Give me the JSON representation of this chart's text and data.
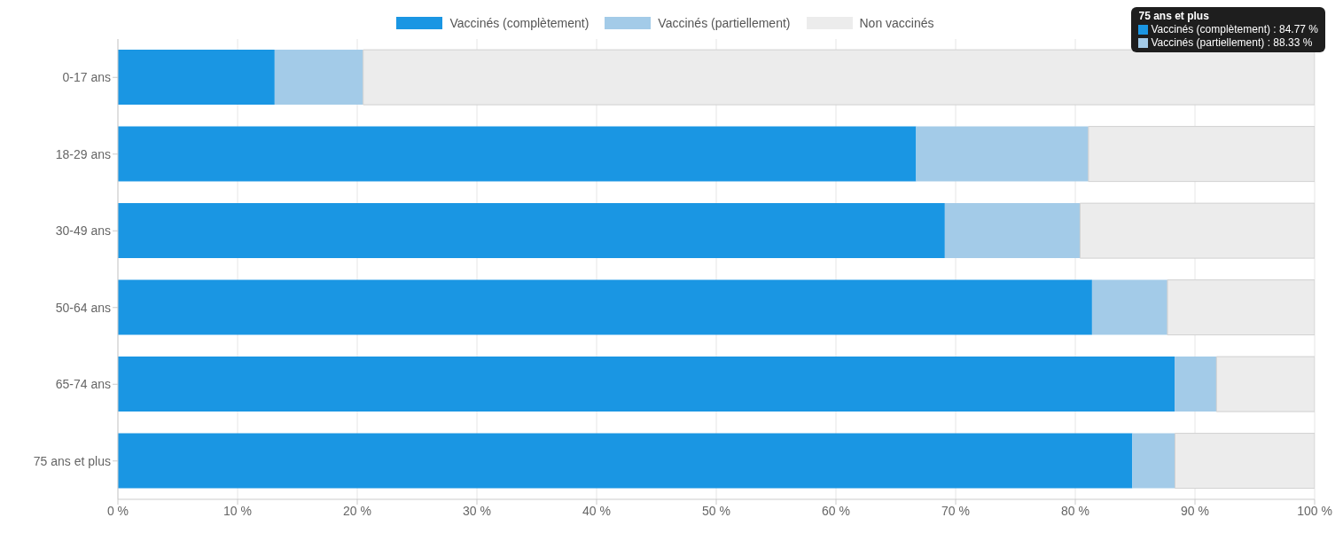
{
  "chart_data": {
    "type": "bar",
    "orientation": "horizontal",
    "stacked": true,
    "categories": [
      "0-17 ans",
      "18-29 ans",
      "30-49 ans",
      "50-64 ans",
      "65-74 ans",
      "75 ans et plus"
    ],
    "series": [
      {
        "name": "Vaccinés (complètement)",
        "color": "#1a96e3",
        "values": [
          13.1,
          66.7,
          69.1,
          81.4,
          88.3,
          84.77
        ]
      },
      {
        "name": "Vaccinés (partiellement)",
        "color": "#a3cbe8",
        "values": [
          7.4,
          14.4,
          11.3,
          6.3,
          3.5,
          3.56
        ]
      },
      {
        "name": "Non vaccinés",
        "color": "#ececec",
        "values": [
          79.5,
          18.9,
          19.6,
          12.3,
          8.2,
          11.67
        ]
      }
    ],
    "xlim": [
      0,
      100
    ],
    "xticks": [
      {
        "value": 0,
        "label": "0 %"
      },
      {
        "value": 10,
        "label": "10 %"
      },
      {
        "value": 20,
        "label": "20 %"
      },
      {
        "value": 30,
        "label": "30 %"
      },
      {
        "value": 40,
        "label": "40 %"
      },
      {
        "value": 50,
        "label": "50 %"
      },
      {
        "value": 60,
        "label": "60 %"
      },
      {
        "value": 70,
        "label": "70 %"
      },
      {
        "value": 80,
        "label": "80 %"
      },
      {
        "value": 90,
        "label": "90 %"
      },
      {
        "value": 100,
        "label": "100 %"
      }
    ],
    "grid": "x",
    "legend": "top",
    "annotations": [
      "75 ans et plus",
      "Vaccinés (complètement) : 84.77 %",
      "Vaccinés (partiellement) : 88.33 %"
    ]
  }
}
